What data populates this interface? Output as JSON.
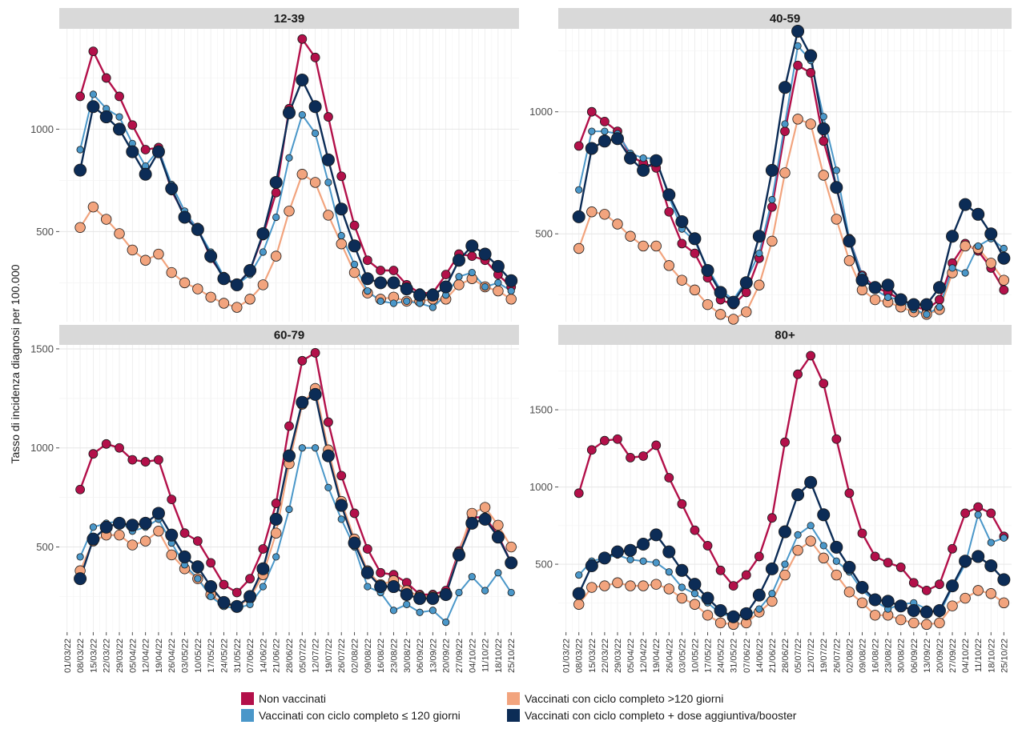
{
  "chart_data": {
    "type": "line",
    "ylabel": "Tasso di incidenza diagnosi per 100.000",
    "xlabel": "",
    "x": [
      "01/03/22",
      "08/03/22",
      "15/03/22",
      "22/03/22",
      "29/03/22",
      "05/04/22",
      "12/04/22",
      "19/04/22",
      "26/04/22",
      "03/05/22",
      "10/05/22",
      "17/05/22",
      "24/05/22",
      "31/05/22",
      "07/06/22",
      "14/06/22",
      "21/06/22",
      "28/06/22",
      "05/07/22",
      "12/07/22",
      "19/07/22",
      "26/07/22",
      "02/08/22",
      "09/08/22",
      "16/08/22",
      "23/08/22",
      "30/08/22",
      "06/09/22",
      "13/09/22",
      "20/09/22",
      "27/09/22",
      "04/10/22",
      "11/10/22",
      "18/10/22",
      "25/10/22"
    ],
    "legend": {
      "placement": "bottom",
      "entries": [
        {
          "label": "Non vaccinati",
          "color": "#b3104a"
        },
        {
          "label": "Vaccinati con ciclo completo ≤ 120 giorni",
          "color": "#4a97c9"
        },
        {
          "label": "Vaccinati con ciclo completo >120 giorni",
          "color": "#f2a47e"
        },
        {
          "label": "Vaccinati con ciclo completo + dose aggiuntiva/booster",
          "color": "#0c2c56"
        }
      ]
    },
    "panels": [
      {
        "title": "12-39",
        "ylim": [
          60,
          1490
        ],
        "yticks": [
          500,
          1000
        ],
        "series": [
          {
            "name": "Non vaccinati",
            "color": "#b3104a",
            "values": [
              null,
              1160,
              1380,
              1250,
              1160,
              1020,
              900,
              910,
              700,
              580,
              520,
              370,
              280,
              240,
              310,
              480,
              690,
              1100,
              1440,
              1350,
              1060,
              770,
              530,
              360,
              310,
              310,
              240,
              200,
              200,
              290,
              390,
              380,
              360,
              290,
              230
            ]
          },
          {
            "name": "Vaccinati con ciclo completo ≤ 120 giorni",
            "color": "#4a97c9",
            "values": [
              null,
              900,
              1170,
              1100,
              1060,
              930,
              820,
              900,
              730,
              600,
              510,
              400,
              280,
              240,
              290,
              400,
              570,
              860,
              1070,
              980,
              740,
              480,
              340,
              210,
              160,
              150,
              160,
              150,
              130,
              190,
              280,
              300,
              230,
              250,
              210
            ]
          },
          {
            "name": "Vaccinati con ciclo completo >120 giorni",
            "color": "#f2a47e",
            "values": [
              null,
              520,
              620,
              560,
              490,
              410,
              360,
              390,
              300,
              250,
              220,
              180,
              150,
              130,
              170,
              240,
              380,
              600,
              780,
              740,
              580,
              440,
              300,
              200,
              170,
              180,
              160,
              160,
              170,
              170,
              240,
              270,
              230,
              210,
              170
            ]
          },
          {
            "name": "Vaccinati con ciclo completo + dose aggiuntiva/booster",
            "color": "#0c2c56",
            "values": [
              null,
              800,
              1110,
              1060,
              1000,
              890,
              780,
              890,
              710,
              570,
              510,
              380,
              270,
              240,
              310,
              490,
              740,
              1080,
              1240,
              1110,
              850,
              610,
              430,
              270,
              250,
              250,
              220,
              190,
              190,
              230,
              360,
              430,
              390,
              330,
              260
            ]
          }
        ]
      },
      {
        "title": "40-59",
        "ylim": [
          140,
          1340
        ],
        "yticks": [
          500,
          1000
        ],
        "series": [
          {
            "name": "Non vaccinati",
            "color": "#b3104a",
            "values": [
              null,
              860,
              1000,
              960,
              920,
              820,
              790,
              770,
              590,
              460,
              420,
              320,
              230,
              210,
              260,
              400,
              610,
              920,
              1190,
              1160,
              880,
              690,
              480,
              330,
              280,
              260,
              230,
              200,
              190,
              230,
              380,
              460,
              430,
              360,
              270
            ]
          },
          {
            "name": "Vaccinati con ciclo completo ≤ 120 giorni",
            "color": "#4a97c9",
            "values": [
              null,
              680,
              920,
              920,
              910,
              830,
              810,
              810,
              650,
              520,
              470,
              360,
              270,
              230,
              310,
              420,
              640,
              950,
              1270,
              1210,
              980,
              760,
              480,
              330,
              270,
              240,
              230,
              190,
              170,
              200,
              360,
              340,
              450,
              480,
              440
            ]
          },
          {
            "name": "Vaccinati con ciclo completo >120 giorni",
            "color": "#f2a47e",
            "values": [
              null,
              440,
              590,
              580,
              540,
              490,
              450,
              450,
              370,
              310,
              270,
              210,
              170,
              150,
              180,
              290,
              470,
              750,
              970,
              950,
              740,
              560,
              390,
              270,
              230,
              220,
              200,
              180,
              170,
              190,
              340,
              450,
              440,
              380,
              310
            ]
          },
          {
            "name": "Vaccinati con ciclo completo + dose aggiuntiva/booster",
            "color": "#0c2c56",
            "values": [
              null,
              570,
              850,
              880,
              890,
              810,
              760,
              800,
              660,
              550,
              480,
              350,
              260,
              220,
              300,
              490,
              760,
              1100,
              1330,
              1230,
              930,
              690,
              470,
              310,
              280,
              290,
              230,
              210,
              210,
              280,
              490,
              620,
              580,
              500,
              400
            ]
          }
        ]
      },
      {
        "title": "60-79",
        "ylim": [
          70,
          1520
        ],
        "yticks": [
          500,
          1000,
          1500
        ],
        "series": [
          {
            "name": "Non vaccinati",
            "color": "#b3104a",
            "values": [
              null,
              790,
              970,
              1020,
              1000,
              940,
              930,
              940,
              740,
              570,
              530,
              420,
              310,
              270,
              340,
              490,
              720,
              1110,
              1440,
              1480,
              1130,
              860,
              670,
              490,
              370,
              360,
              320,
              260,
              260,
              280,
              480,
              650,
              650,
              560,
              420
            ]
          },
          {
            "name": "Vaccinati con ciclo completo ≤ 120 giorni",
            "color": "#4a97c9",
            "values": [
              null,
              450,
              600,
              620,
              630,
              580,
              600,
              640,
              520,
              410,
              340,
              250,
              200,
              190,
              210,
              300,
              450,
              690,
              1000,
              1000,
              800,
              640,
              500,
              300,
              270,
              180,
              210,
              170,
              180,
              120,
              270,
              350,
              280,
              370,
              270
            ]
          },
          {
            "name": "Vaccinati con ciclo completo >120 giorni",
            "color": "#f2a47e",
            "values": [
              null,
              380,
              530,
              560,
              560,
              510,
              530,
              580,
              460,
              390,
              340,
              260,
              210,
              200,
              240,
              360,
              570,
              920,
              1220,
              1300,
              990,
              730,
              540,
              380,
              310,
              330,
              280,
              250,
              250,
              260,
              470,
              670,
              700,
              610,
              500
            ]
          },
          {
            "name": "Vaccinati con ciclo completo + dose aggiuntiva/booster",
            "color": "#0c2c56",
            "values": [
              null,
              340,
              540,
              600,
              620,
              610,
              620,
              670,
              560,
              450,
              400,
              300,
              220,
              200,
              250,
              390,
              640,
              960,
              1230,
              1270,
              960,
              710,
              520,
              370,
              300,
              300,
              260,
              240,
              240,
              260,
              460,
              620,
              640,
              550,
              420
            ]
          }
        ]
      },
      {
        "title": "80+",
        "ylim": [
          60,
          1920
        ],
        "yticks": [
          500,
          1000,
          1500
        ],
        "series": [
          {
            "name": "Non vaccinati",
            "color": "#b3104a",
            "values": [
              null,
              960,
              1240,
              1300,
              1310,
              1190,
              1200,
              1270,
              1060,
              890,
              720,
              620,
              460,
              360,
              430,
              550,
              800,
              1290,
              1730,
              1850,
              1670,
              1310,
              960,
              700,
              550,
              510,
              480,
              380,
              330,
              370,
              600,
              830,
              870,
              830,
              680
            ]
          },
          {
            "name": "Vaccinati con ciclo completo ≤ 120 giorni",
            "color": "#4a97c9",
            "values": [
              null,
              430,
              520,
              540,
              560,
              530,
              520,
              510,
              450,
              350,
              310,
              250,
              180,
              160,
              160,
              210,
              310,
              500,
              690,
              750,
              620,
              520,
              450,
              330,
              260,
              210,
              240,
              250,
              210,
              180,
              350,
              500,
              820,
              640,
              670
            ]
          },
          {
            "name": "Vaccinati con ciclo completo >120 giorni",
            "color": "#f2a47e",
            "values": [
              null,
              240,
              350,
              360,
              380,
              360,
              360,
              370,
              340,
              280,
              240,
              170,
              120,
              110,
              120,
              190,
              260,
              430,
              590,
              650,
              540,
              430,
              320,
              250,
              170,
              170,
              140,
              120,
              110,
              120,
              230,
              280,
              330,
              310,
              250
            ]
          },
          {
            "name": "Vaccinati con ciclo completo + dose aggiuntiva/booster",
            "color": "#0c2c56",
            "values": [
              null,
              310,
              490,
              540,
              580,
              590,
              630,
              690,
              580,
              460,
              370,
              280,
              200,
              160,
              180,
              300,
              470,
              710,
              950,
              1030,
              820,
              610,
              480,
              350,
              270,
              260,
              230,
              200,
              190,
              200,
              360,
              520,
              550,
              490,
              400
            ]
          }
        ]
      }
    ]
  }
}
